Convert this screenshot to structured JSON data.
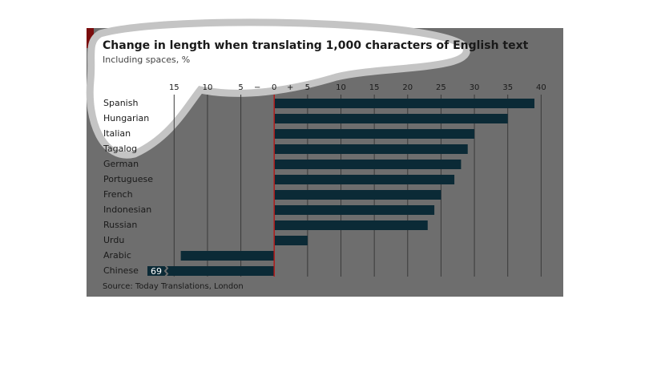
{
  "chart_data": {
    "type": "barh",
    "title": "Change in length when translating 1,000 characters of English text",
    "subtitle": "Including spaces, %",
    "source": "Source: Today Translations, London",
    "sign_minus": "−",
    "sign_plus": "+",
    "categories": [
      "Spanish",
      "Hungarian",
      "Italian",
      "Tagalog",
      "German",
      "Portuguese",
      "French",
      "Indonesian",
      "Russian",
      "Urdu",
      "Arabic",
      "Chinese"
    ],
    "values": [
      39,
      35,
      30,
      29,
      28,
      27,
      25,
      24,
      23,
      5,
      -14,
      -69
    ],
    "value_labels": [
      null,
      null,
      null,
      null,
      null,
      null,
      null,
      null,
      null,
      null,
      null,
      "69"
    ],
    "color": "#0b2a36",
    "xlim": [
      -19,
      42
    ],
    "xticks": [
      {
        "value": -15,
        "label": "15"
      },
      {
        "value": -10,
        "label": "10"
      },
      {
        "value": -5,
        "label": "5"
      },
      0,
      5,
      10,
      15,
      20,
      25,
      30,
      35,
      40
    ],
    "grid": true
  }
}
